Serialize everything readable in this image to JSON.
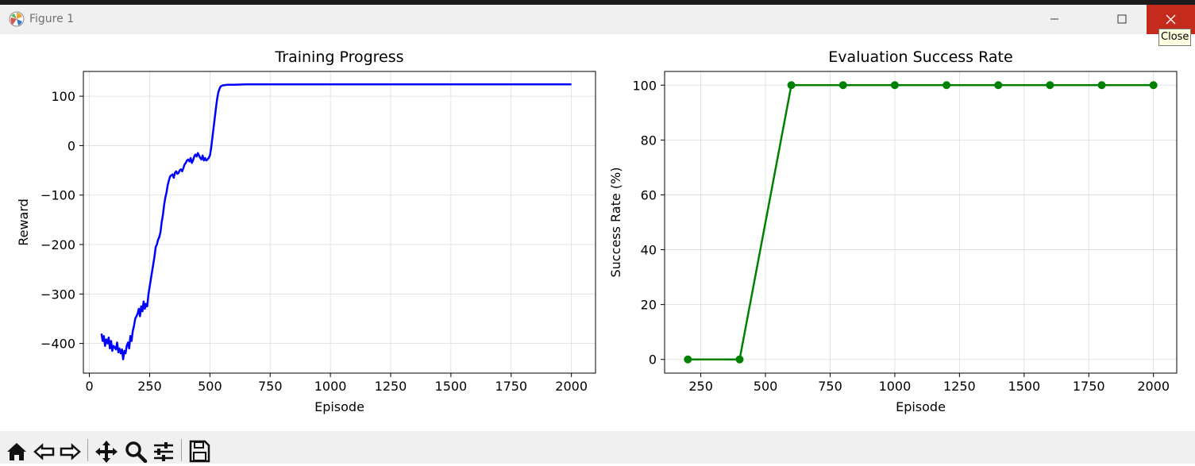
{
  "window": {
    "title": "Figure 1",
    "close_tooltip": "Close"
  },
  "toolbar": {
    "buttons": [
      {
        "name": "home-icon"
      },
      {
        "name": "back-icon"
      },
      {
        "name": "forward-icon"
      },
      {
        "name": "pan-icon"
      },
      {
        "name": "zoom-icon"
      },
      {
        "name": "configure-subplots-icon"
      },
      {
        "name": "save-icon"
      }
    ]
  },
  "chart_data": [
    {
      "type": "line",
      "title": "Training Progress",
      "xlabel": "Episode",
      "ylabel": "Reward",
      "xlim": [
        -25,
        2100
      ],
      "ylim": [
        -460,
        150
      ],
      "xticks": [
        0,
        250,
        500,
        750,
        1000,
        1250,
        1500,
        1750,
        2000
      ],
      "yticks": [
        -400,
        -300,
        -200,
        -100,
        0,
        100
      ],
      "grid": true,
      "color": "#0000ff",
      "series": [
        {
          "x": [
            50,
            55,
            60,
            65,
            70,
            75,
            80,
            85,
            90,
            95,
            100,
            105,
            110,
            115,
            120,
            125,
            130,
            135,
            140,
            145,
            150,
            155,
            160,
            165,
            170,
            175,
            180,
            185,
            190,
            195,
            200,
            205,
            210,
            215,
            220,
            225,
            230,
            235,
            240,
            245,
            250,
            255,
            260,
            265,
            270,
            275,
            280,
            285,
            290,
            295,
            300,
            305,
            310,
            315,
            320,
            325,
            330,
            335,
            340,
            345,
            350,
            355,
            360,
            365,
            370,
            375,
            380,
            385,
            390,
            395,
            400,
            405,
            410,
            415,
            420,
            425,
            430,
            435,
            440,
            445,
            450,
            455,
            460,
            465,
            470,
            475,
            480,
            485,
            490,
            495,
            500,
            505,
            510,
            515,
            520,
            525,
            530,
            535,
            540,
            545,
            550,
            555,
            560,
            570,
            580,
            600,
            650,
            700,
            750,
            800,
            900,
            1000,
            1100,
            1200,
            1300,
            1400,
            1500,
            1600,
            1700,
            1800,
            1900,
            2000
          ],
          "y": [
            -380,
            -395,
            -385,
            -405,
            -392,
            -400,
            -388,
            -410,
            -395,
            -415,
            -405,
            -408,
            -412,
            -398,
            -418,
            -410,
            -420,
            -412,
            -432,
            -415,
            -420,
            -405,
            -398,
            -410,
            -385,
            -395,
            -375,
            -365,
            -350,
            -345,
            -340,
            -330,
            -345,
            -325,
            -335,
            -315,
            -330,
            -320,
            -325,
            -300,
            -285,
            -270,
            -255,
            -240,
            -225,
            -205,
            -200,
            -190,
            -185,
            -175,
            -155,
            -140,
            -120,
            -105,
            -95,
            -80,
            -70,
            -62,
            -60,
            -58,
            -65,
            -55,
            -52,
            -57,
            -55,
            -50,
            -48,
            -52,
            -45,
            -38,
            -35,
            -30,
            -28,
            -32,
            -25,
            -35,
            -30,
            -22,
            -18,
            -22,
            -15,
            -20,
            -25,
            -28,
            -20,
            -30,
            -25,
            -30,
            -28,
            -25,
            -20,
            -5,
            15,
            35,
            55,
            75,
            95,
            108,
            115,
            120,
            121,
            122,
            122,
            123,
            123,
            123,
            124,
            124,
            124,
            124,
            124,
            124,
            124,
            124,
            124,
            124,
            124,
            124,
            124,
            124,
            124,
            124
          ]
        }
      ]
    },
    {
      "type": "line",
      "title": "Evaluation Success Rate",
      "xlabel": "Episode",
      "ylabel": "Success Rate (%)",
      "xlim": [
        110,
        2090
      ],
      "ylim": [
        -5,
        105
      ],
      "xticks": [
        250,
        500,
        750,
        1000,
        1250,
        1500,
        1750,
        2000
      ],
      "yticks": [
        0,
        20,
        40,
        60,
        80,
        100
      ],
      "grid": true,
      "color": "#008000",
      "markers": true,
      "series": [
        {
          "x": [
            200,
            400,
            600,
            800,
            1000,
            1200,
            1400,
            1600,
            1800,
            2000
          ],
          "y": [
            0,
            0,
            100,
            100,
            100,
            100,
            100,
            100,
            100,
            100
          ]
        }
      ]
    }
  ]
}
